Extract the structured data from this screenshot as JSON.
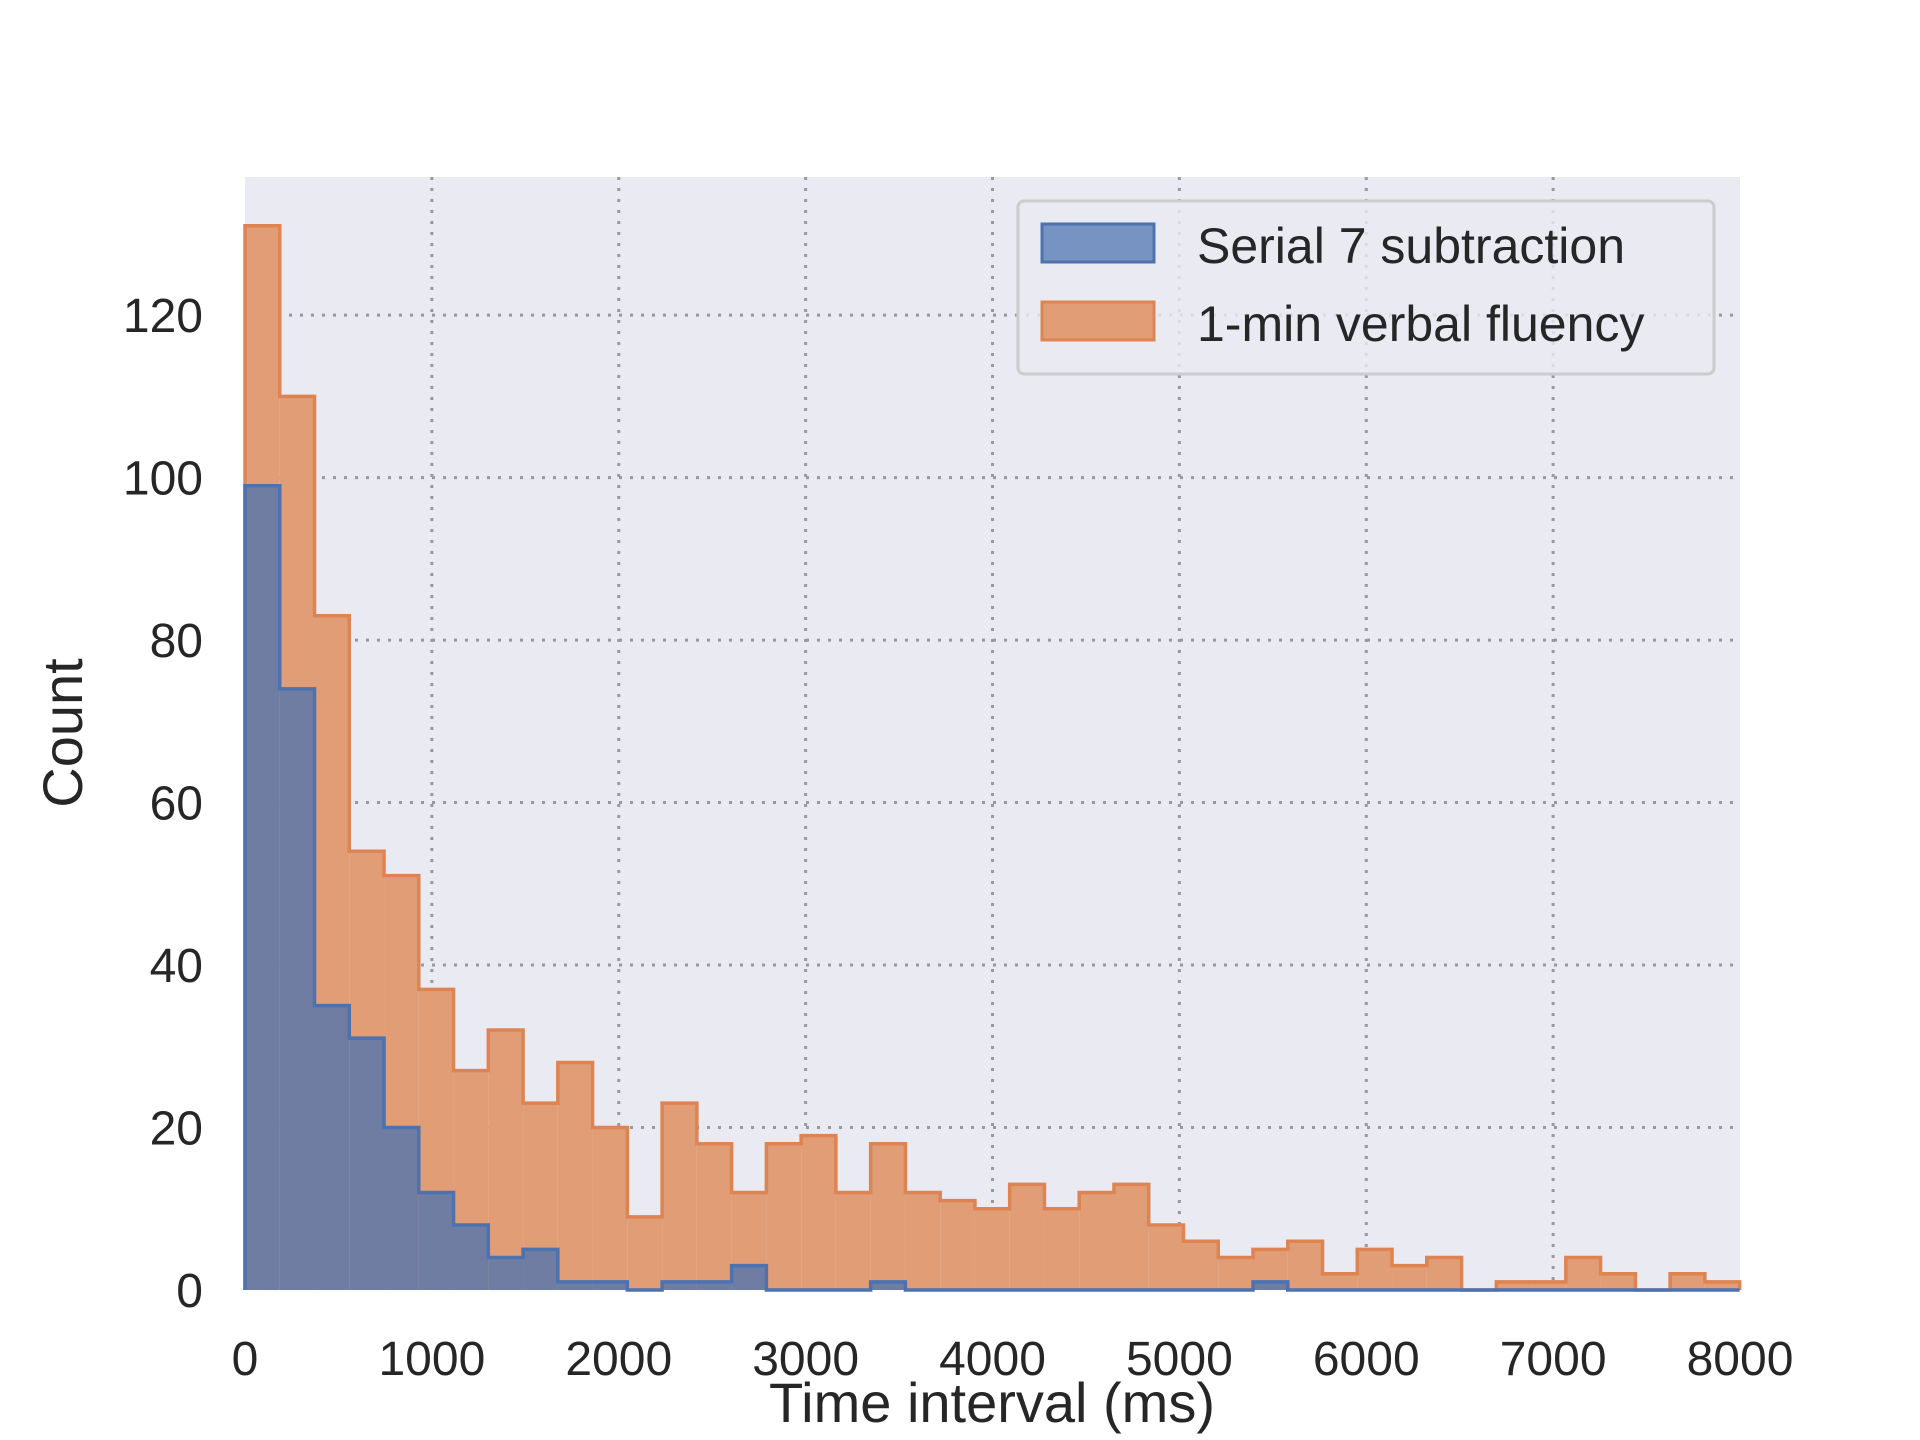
{
  "chart_data": {
    "type": "histogram",
    "title": "",
    "xlabel": "Time interval (ms)",
    "ylabel": "Count",
    "xlim": [
      0,
      8000
    ],
    "ylim": [
      0,
      137
    ],
    "bin_width": 186,
    "x_ticks": [
      "0",
      "1000",
      "2000",
      "3000",
      "4000",
      "5000",
      "6000",
      "7000",
      "8000"
    ],
    "y_ticks": [
      "0",
      "20",
      "40",
      "60",
      "80",
      "100",
      "120"
    ],
    "grid": true,
    "grid_style": "dotted",
    "legend_position": "top-right",
    "background_color": "#eaeaf2",
    "bins": [
      0,
      186,
      372,
      558,
      744,
      930,
      1116,
      1302,
      1488,
      1674,
      1860,
      2046,
      2232,
      2418,
      2604,
      2790,
      2976,
      3162,
      3348,
      3534,
      3720,
      3906,
      4092,
      4278,
      4464,
      4650,
      4836,
      5022,
      5208,
      5394,
      5580,
      5766,
      5952,
      6138,
      6324,
      6510,
      6696,
      6882,
      7068,
      7254,
      7440,
      7626,
      7812,
      7998
    ],
    "series": [
      {
        "name": "1-min verbal fluency",
        "color": "#dd8452",
        "fill": "#e19d76",
        "counts": [
          131,
          110,
          83,
          54,
          51,
          37,
          27,
          32,
          23,
          28,
          20,
          9,
          23,
          18,
          12,
          18,
          19,
          12,
          18,
          12,
          11,
          10,
          13,
          10,
          12,
          13,
          8,
          6,
          4,
          5,
          6,
          2,
          5,
          3,
          4,
          0,
          1,
          1,
          4,
          2,
          0,
          2,
          1
        ]
      },
      {
        "name": "Serial 7 subtraction",
        "color": "#4c72b0",
        "fill": "#6f7da2",
        "counts": [
          99,
          74,
          35,
          31,
          20,
          12,
          8,
          4,
          5,
          1,
          1,
          0,
          1,
          1,
          3,
          0,
          0,
          0,
          1,
          0,
          0,
          0,
          0,
          0,
          0,
          0,
          0,
          0,
          0,
          1,
          0,
          0,
          0,
          0,
          0,
          0,
          0,
          0,
          0,
          0,
          0,
          0,
          0
        ]
      }
    ]
  },
  "legend": {
    "items": [
      {
        "label": "Serial 7 subtraction",
        "swatch_fill": "#7793c1",
        "swatch_edge": "#4c72b0"
      },
      {
        "label": "1-min verbal fluency",
        "swatch_fill": "#e19d76",
        "swatch_edge": "#dd8452"
      }
    ]
  }
}
